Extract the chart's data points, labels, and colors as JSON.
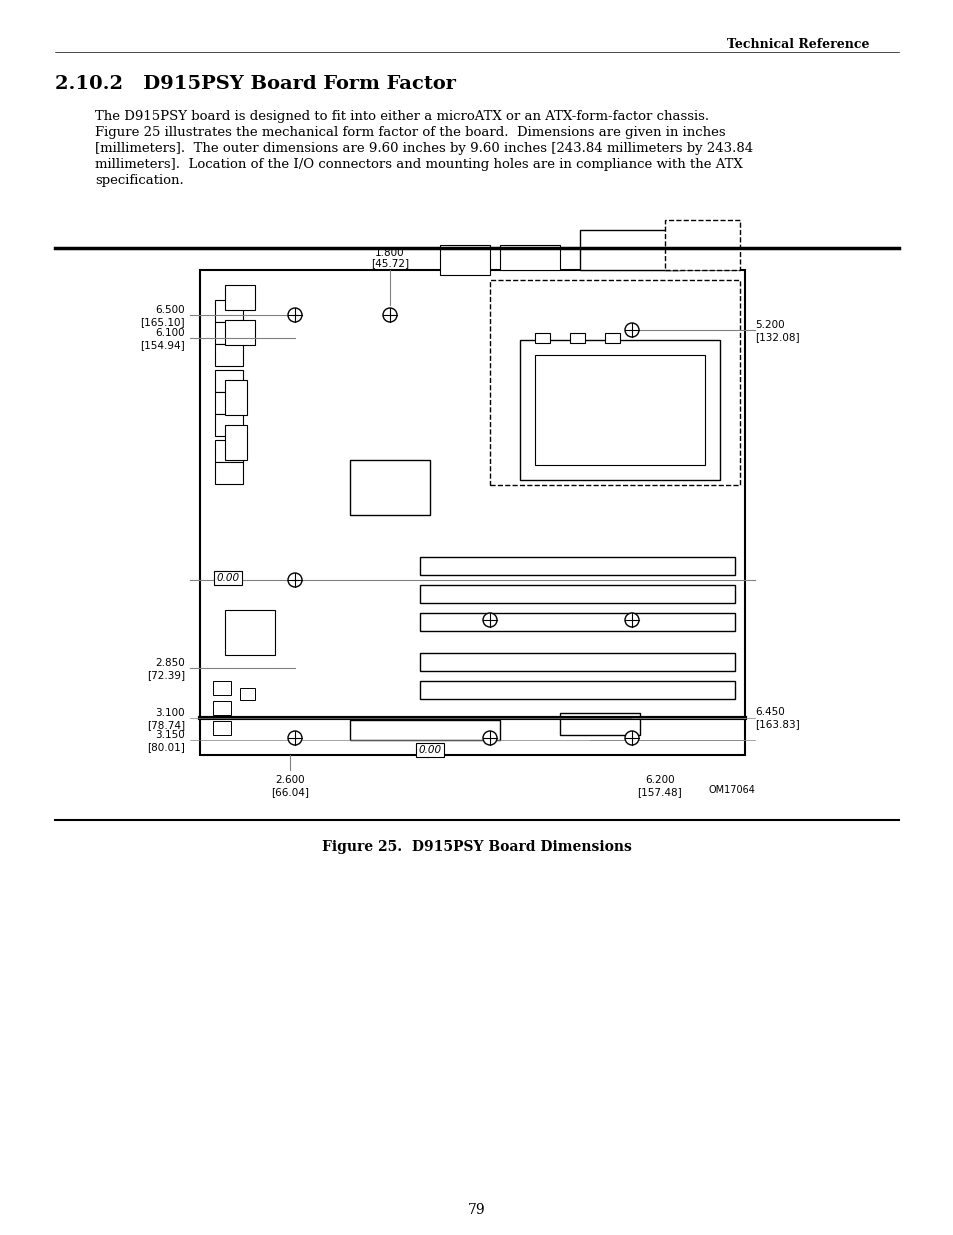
{
  "page_title": "Technical Reference",
  "section_title": "2.10.2   D915PSY Board Form Factor",
  "body_text": "The D915PSY board is designed to fit into either a microATX or an ATX-form-factor chassis.\nFigure 25 illustrates the mechanical form factor of the board.  Dimensions are given in inches\n[millimeters].  The outer dimensions are 9.60 inches by 9.60 inches [243.84 millimeters by 243.84\nmillimeters].  Location of the I/O connectors and mounting holes are in compliance with the ATX\nspecification.",
  "figure_caption": "Figure 25.  D915PSY Board Dimensions",
  "figure_id": "OM17064",
  "page_number": "79",
  "bg_color": "#ffffff",
  "text_color": "#000000"
}
